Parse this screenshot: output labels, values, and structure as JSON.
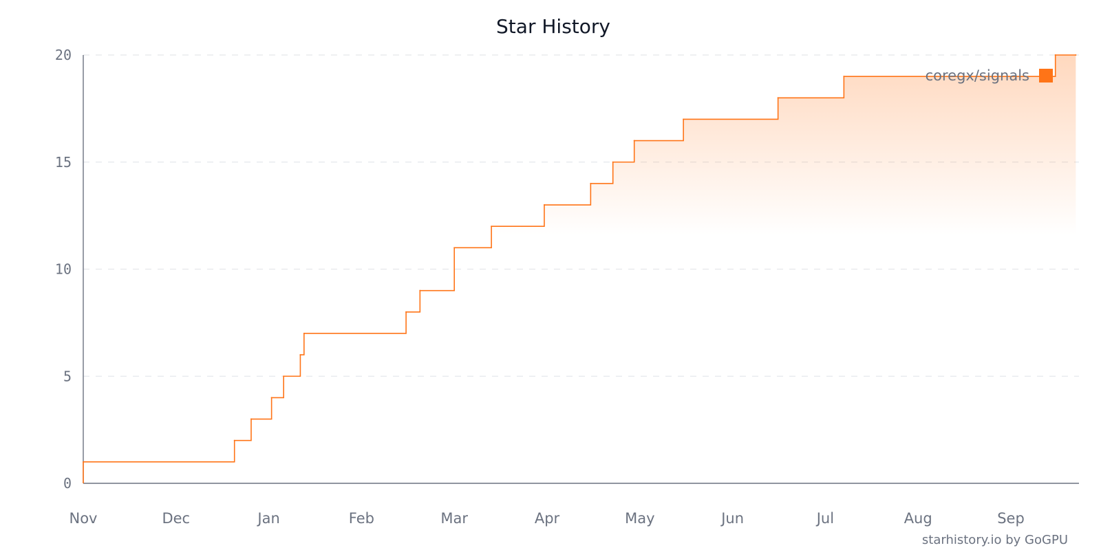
{
  "chart_data": {
    "type": "line",
    "title": "Star History",
    "xlabel": "",
    "ylabel": "",
    "ylim": [
      0,
      20
    ],
    "yticks": [
      0,
      5,
      10,
      15,
      20
    ],
    "xticks": [
      "Nov",
      "Dec",
      "Jan",
      "Feb",
      "Mar",
      "Apr",
      "May",
      "Jun",
      "Jul",
      "Aug",
      "Sep"
    ],
    "xlim": [
      0,
      10.7
    ],
    "grid": true,
    "legend_position": "top-right",
    "series": [
      {
        "name": "coregx/signals",
        "color": "#ff7417",
        "step": true,
        "x": [
          0,
          1.63,
          1.81,
          2.03,
          2.16,
          2.34,
          2.38,
          3.48,
          3.63,
          4.0,
          4.4,
          4.97,
          5.47,
          5.71,
          5.94,
          6.47,
          7.49,
          8.2,
          9.62,
          10.48,
          10.7
        ],
        "y": [
          1,
          2,
          3,
          4,
          5,
          6,
          7,
          8,
          9,
          11,
          12,
          13,
          14,
          15,
          16,
          17,
          18,
          19,
          19,
          20,
          20
        ]
      }
    ]
  },
  "watermark": "starhistory.io by GoGPU"
}
